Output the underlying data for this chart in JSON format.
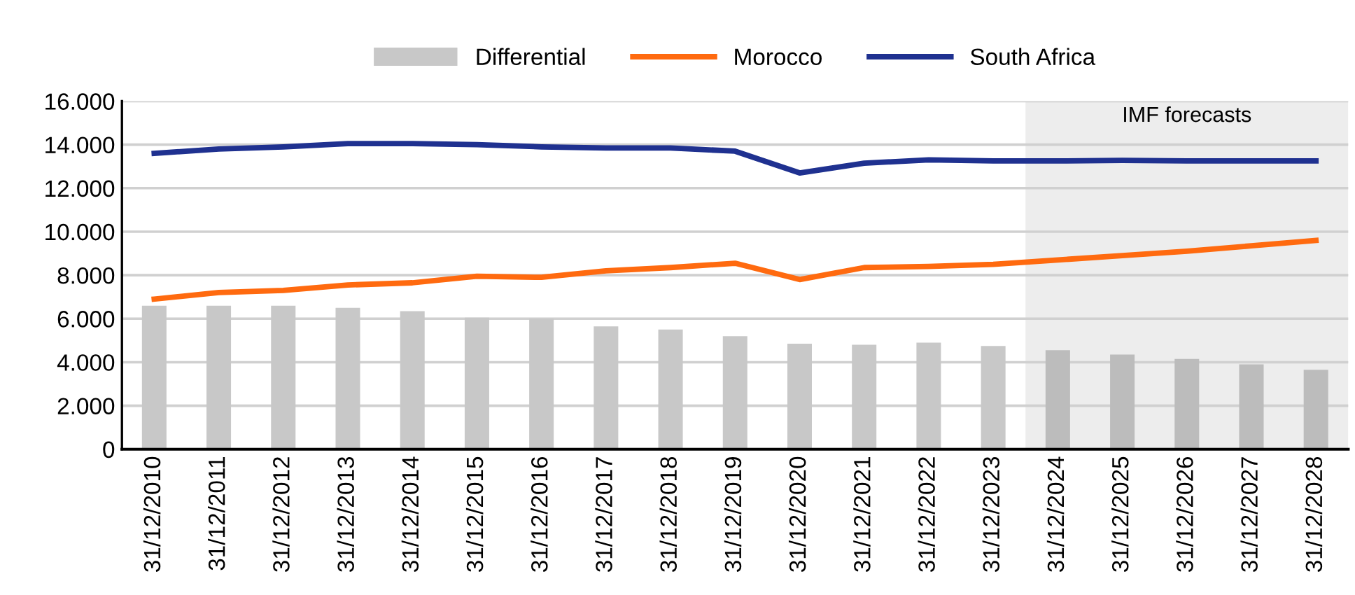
{
  "chart_data": {
    "type": "bar",
    "categories": [
      "31/12/2010",
      "31/12/2011",
      "31/12/2012",
      "31/12/2013",
      "31/12/2014",
      "31/12/2015",
      "31/12/2016",
      "31/12/2017",
      "31/12/2018",
      "31/12/2019",
      "31/12/2020",
      "31/12/2021",
      "31/12/2022",
      "31/12/2023",
      "31/12/2024",
      "31/12/2025",
      "31/12/2026",
      "31/12/2027",
      "31/12/2028"
    ],
    "series": [
      {
        "name": "Differential",
        "colors": [
          "#c8c8c8",
          "#c8c8c8",
          "#c8c8c8",
          "#c8c8c8",
          "#c8c8c8",
          "#c8c8c8",
          "#c8c8c8",
          "#c8c8c8",
          "#c8c8c8",
          "#c8c8c8",
          "#c8c8c8",
          "#c8c8c8",
          "#c8c8c8",
          "#c8c8c8",
          "#bcbcbc",
          "#bcbcbc",
          "#bcbcbc",
          "#bcbcbc",
          "#bcbcbc"
        ],
        "values": [
          6600,
          6600,
          6600,
          6500,
          6350,
          6050,
          6000,
          5650,
          5500,
          5200,
          4850,
          4800,
          4900,
          4750,
          4550,
          4350,
          4150,
          3900,
          3650
        ]
      },
      {
        "name": "Morocco",
        "type": "line",
        "color": "#ff6a0f",
        "values": [
          6900,
          7200,
          7300,
          7550,
          7650,
          7950,
          7900,
          8200,
          8350,
          8550,
          7800,
          8350,
          8400,
          8500,
          8700,
          8900,
          9100,
          9350,
          9600
        ]
      },
      {
        "name": "South Africa",
        "type": "line",
        "color": "#1f3190",
        "values": [
          13600,
          13800,
          13900,
          14050,
          14050,
          14000,
          13900,
          13850,
          13850,
          13700,
          12700,
          13150,
          13300,
          13250,
          13250,
          13280,
          13250,
          13250,
          13250
        ]
      }
    ],
    "ylim": [
      0,
      16000
    ],
    "yticks": [
      0,
      {
        "value": 2000,
        "label": "2.000"
      },
      {
        "value": 4000,
        "label": "4.000"
      },
      {
        "value": 6000,
        "label": "6.000"
      },
      {
        "value": 8000,
        "label": "8.000"
      },
      {
        "value": 10000,
        "label": "10.000"
      },
      {
        "value": 12000,
        "label": "12.000"
      },
      {
        "value": 14000,
        "label": "14.000"
      },
      {
        "value": 16000,
        "label": "16.000"
      }
    ],
    "bands": [
      {
        "axis": "x",
        "from": "31/12/2024",
        "to": "31/12/2028",
        "label": "IMF forecasts",
        "color": "#ededed"
      }
    ],
    "grid": "y",
    "legend": "top",
    "line_style": "solid",
    "marker": "none"
  }
}
